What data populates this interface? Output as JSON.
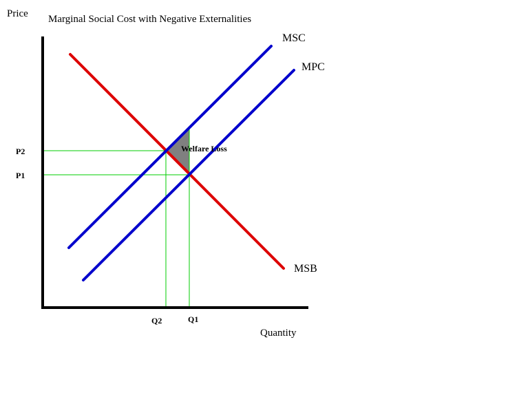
{
  "title": "Marginal Social Cost with Negative Externalities",
  "axes": {
    "y_label": "Price",
    "x_label": "Quantity"
  },
  "curves": [
    {
      "label": "MSC"
    },
    {
      "label": "MPC"
    },
    {
      "label": "MSB"
    }
  ],
  "price_levels": [
    "P2",
    "P1"
  ],
  "quantity_levels": [
    "Q2",
    "Q1"
  ],
  "annotation": "Welfare Loss"
}
